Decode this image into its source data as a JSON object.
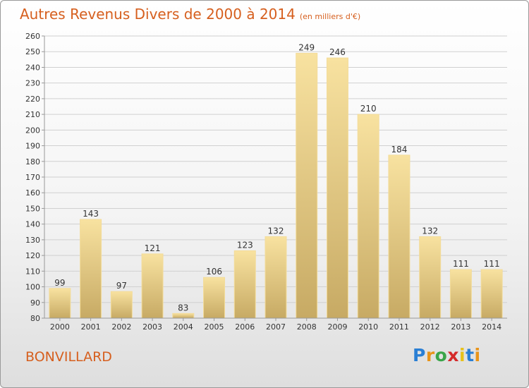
{
  "title": "Autres Revenus Divers de 2000 à 2014",
  "subtitle": "(en milliers d'€)",
  "location": "BONVILLARD",
  "logo": {
    "text": "Proxiti",
    "letter_colors": [
      "#2a7fd4",
      "#e8941a",
      "#3aa54a",
      "#d42a2a",
      "#e8c11a",
      "#2a7fd4",
      "#e8941a"
    ]
  },
  "colors": {
    "title": "#d65f1e",
    "bar_light": "#f8e2a0",
    "bar_dark": "#c7aa64",
    "grid": "#d0d0d0"
  },
  "chart_data": {
    "type": "bar",
    "title": "Autres Revenus Divers de 2000 à 2014",
    "subtitle": "(en milliers d'€)",
    "categories": [
      "2000",
      "2001",
      "2002",
      "2003",
      "2004",
      "2005",
      "2006",
      "2007",
      "2008",
      "2009",
      "2010",
      "2011",
      "2012",
      "2013",
      "2014"
    ],
    "values": [
      99,
      143,
      97,
      121,
      83,
      106,
      123,
      132,
      249,
      246,
      210,
      184,
      132,
      111,
      111
    ],
    "ylim": [
      80,
      260
    ],
    "yticks": [
      80,
      90,
      100,
      110,
      120,
      130,
      140,
      150,
      160,
      170,
      180,
      190,
      200,
      210,
      220,
      230,
      240,
      250,
      260
    ],
    "grid": true,
    "legend": "none",
    "xlabel": "",
    "ylabel": ""
  }
}
